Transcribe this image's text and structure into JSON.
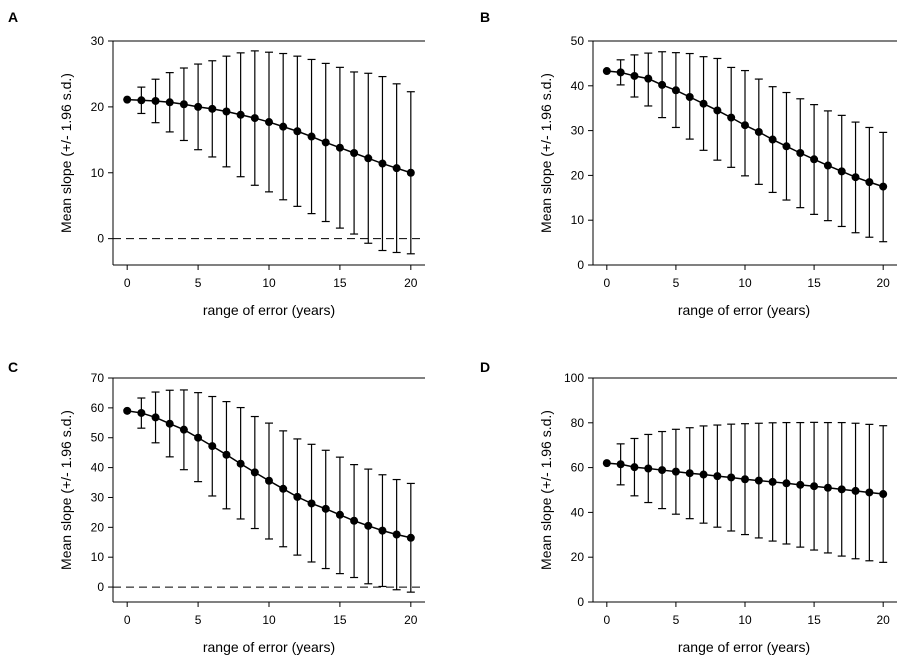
{
  "figure": {
    "panels": [
      "A",
      "B",
      "C",
      "D"
    ]
  },
  "chart_data": [
    {
      "type": "line",
      "panel": "A",
      "xlabel": "range of error (years)",
      "ylabel": "Mean slope (+/- 1.96 s.d.)",
      "xlim": [
        -1,
        21
      ],
      "ylim": [
        -4,
        30
      ],
      "xticks": [
        0,
        5,
        10,
        15,
        20
      ],
      "yticks": [
        0,
        10,
        20,
        30
      ],
      "reference_line": 0,
      "x": [
        0,
        1,
        2,
        3,
        4,
        5,
        6,
        7,
        8,
        9,
        10,
        11,
        12,
        13,
        14,
        15,
        16,
        17,
        18,
        19,
        20
      ],
      "y": [
        21.1,
        21.0,
        20.9,
        20.7,
        20.4,
        20.0,
        19.7,
        19.3,
        18.8,
        18.3,
        17.7,
        17.0,
        16.3,
        15.5,
        14.6,
        13.8,
        13.0,
        12.2,
        11.4,
        10.7,
        10.0
      ],
      "upper": [
        21.1,
        23.0,
        24.2,
        25.2,
        25.9,
        26.5,
        27.0,
        27.7,
        28.2,
        28.5,
        28.3,
        28.1,
        27.7,
        27.2,
        26.6,
        26.0,
        25.3,
        25.1,
        24.6,
        23.5,
        22.3
      ],
      "lower": [
        21.1,
        19.0,
        17.6,
        16.2,
        14.9,
        13.5,
        12.4,
        10.9,
        9.4,
        8.1,
        7.1,
        5.9,
        4.9,
        3.8,
        2.6,
        1.6,
        0.7,
        -0.7,
        -1.8,
        -2.1,
        -2.3
      ]
    },
    {
      "type": "line",
      "panel": "B",
      "xlabel": "range of error (years)",
      "ylabel": "Mean slope (+/- 1.96 s.d.)",
      "xlim": [
        -1,
        21
      ],
      "ylim": [
        0,
        50
      ],
      "xticks": [
        0,
        5,
        10,
        15,
        20
      ],
      "yticks": [
        0,
        10,
        20,
        30,
        40,
        50
      ],
      "x": [
        0,
        1,
        2,
        3,
        4,
        5,
        6,
        7,
        8,
        9,
        10,
        11,
        12,
        13,
        14,
        15,
        16,
        17,
        18,
        19,
        20
      ],
      "y": [
        43.3,
        43.0,
        42.2,
        41.6,
        40.2,
        39.0,
        37.5,
        36.0,
        34.5,
        32.9,
        31.2,
        29.7,
        28.0,
        26.5,
        25.0,
        23.6,
        22.2,
        20.9,
        19.6,
        18.5,
        17.5
      ],
      "upper": [
        43.3,
        45.8,
        46.9,
        47.3,
        47.6,
        47.4,
        47.2,
        46.5,
        46.1,
        44.1,
        43.4,
        41.5,
        39.8,
        38.5,
        37.1,
        35.8,
        34.4,
        33.4,
        31.9,
        30.7,
        29.6
      ],
      "lower": [
        43.3,
        40.2,
        37.5,
        35.5,
        32.9,
        30.7,
        28.1,
        25.6,
        23.4,
        21.8,
        19.9,
        18.0,
        16.2,
        14.5,
        12.8,
        11.3,
        9.9,
        8.6,
        7.2,
        6.2,
        5.2
      ]
    },
    {
      "type": "line",
      "panel": "C",
      "xlabel": "range of error (years)",
      "ylabel": "Mean slope (+/- 1.96 s.d.)",
      "xlim": [
        -1,
        21
      ],
      "ylim": [
        -5,
        70
      ],
      "xticks": [
        0,
        5,
        10,
        15,
        20
      ],
      "yticks": [
        0,
        10,
        20,
        30,
        40,
        50,
        60,
        70
      ],
      "reference_line": 0,
      "x": [
        0,
        1,
        2,
        3,
        4,
        5,
        6,
        7,
        8,
        9,
        10,
        11,
        12,
        13,
        14,
        15,
        16,
        17,
        18,
        19,
        20
      ],
      "y": [
        59.0,
        58.3,
        56.8,
        54.7,
        52.7,
        50.0,
        47.2,
        44.3,
        41.3,
        38.4,
        35.6,
        32.9,
        30.2,
        28.0,
        26.2,
        24.2,
        22.2,
        20.5,
        18.9,
        17.6,
        16.5
      ],
      "upper": [
        59.0,
        63.3,
        65.3,
        65.9,
        66.0,
        65.1,
        63.8,
        62.1,
        60.1,
        57.1,
        54.9,
        52.3,
        49.6,
        47.8,
        45.8,
        43.5,
        41.0,
        39.5,
        37.6,
        36.0,
        34.7
      ],
      "lower": [
        59.0,
        53.2,
        48.3,
        43.6,
        39.3,
        35.3,
        30.5,
        26.2,
        22.8,
        19.6,
        16.1,
        13.5,
        10.7,
        8.4,
        6.2,
        4.5,
        3.2,
        1.1,
        0.2,
        -0.9,
        -1.7
      ]
    },
    {
      "type": "line",
      "panel": "D",
      "xlabel": "range of error (years)",
      "ylabel": "Mean slope (+/- 1.96 s.d.)",
      "xlim": [
        -1,
        21
      ],
      "ylim": [
        0,
        100
      ],
      "xticks": [
        0,
        5,
        10,
        15,
        20
      ],
      "yticks": [
        0,
        20,
        40,
        60,
        80,
        100
      ],
      "x": [
        0,
        1,
        2,
        3,
        4,
        5,
        6,
        7,
        8,
        9,
        10,
        11,
        12,
        13,
        14,
        15,
        16,
        17,
        18,
        19,
        20
      ],
      "y": [
        62.0,
        61.5,
        60.2,
        59.6,
        58.9,
        58.2,
        57.5,
        56.9,
        56.2,
        55.6,
        54.8,
        54.2,
        53.6,
        53.0,
        52.3,
        51.7,
        51.0,
        50.3,
        49.6,
        48.9,
        48.2
      ],
      "upper": [
        62.0,
        70.6,
        73.0,
        74.8,
        76.1,
        77.1,
        77.8,
        78.6,
        79.0,
        79.4,
        79.6,
        79.8,
        80.0,
        80.1,
        80.1,
        80.2,
        80.1,
        80.1,
        79.8,
        79.3,
        78.7
      ],
      "lower": [
        62.0,
        52.3,
        47.4,
        44.4,
        41.7,
        39.2,
        37.2,
        35.2,
        33.4,
        31.7,
        30.1,
        28.6,
        27.2,
        25.9,
        24.5,
        23.2,
        21.9,
        20.5,
        19.3,
        18.4,
        17.7
      ]
    }
  ]
}
